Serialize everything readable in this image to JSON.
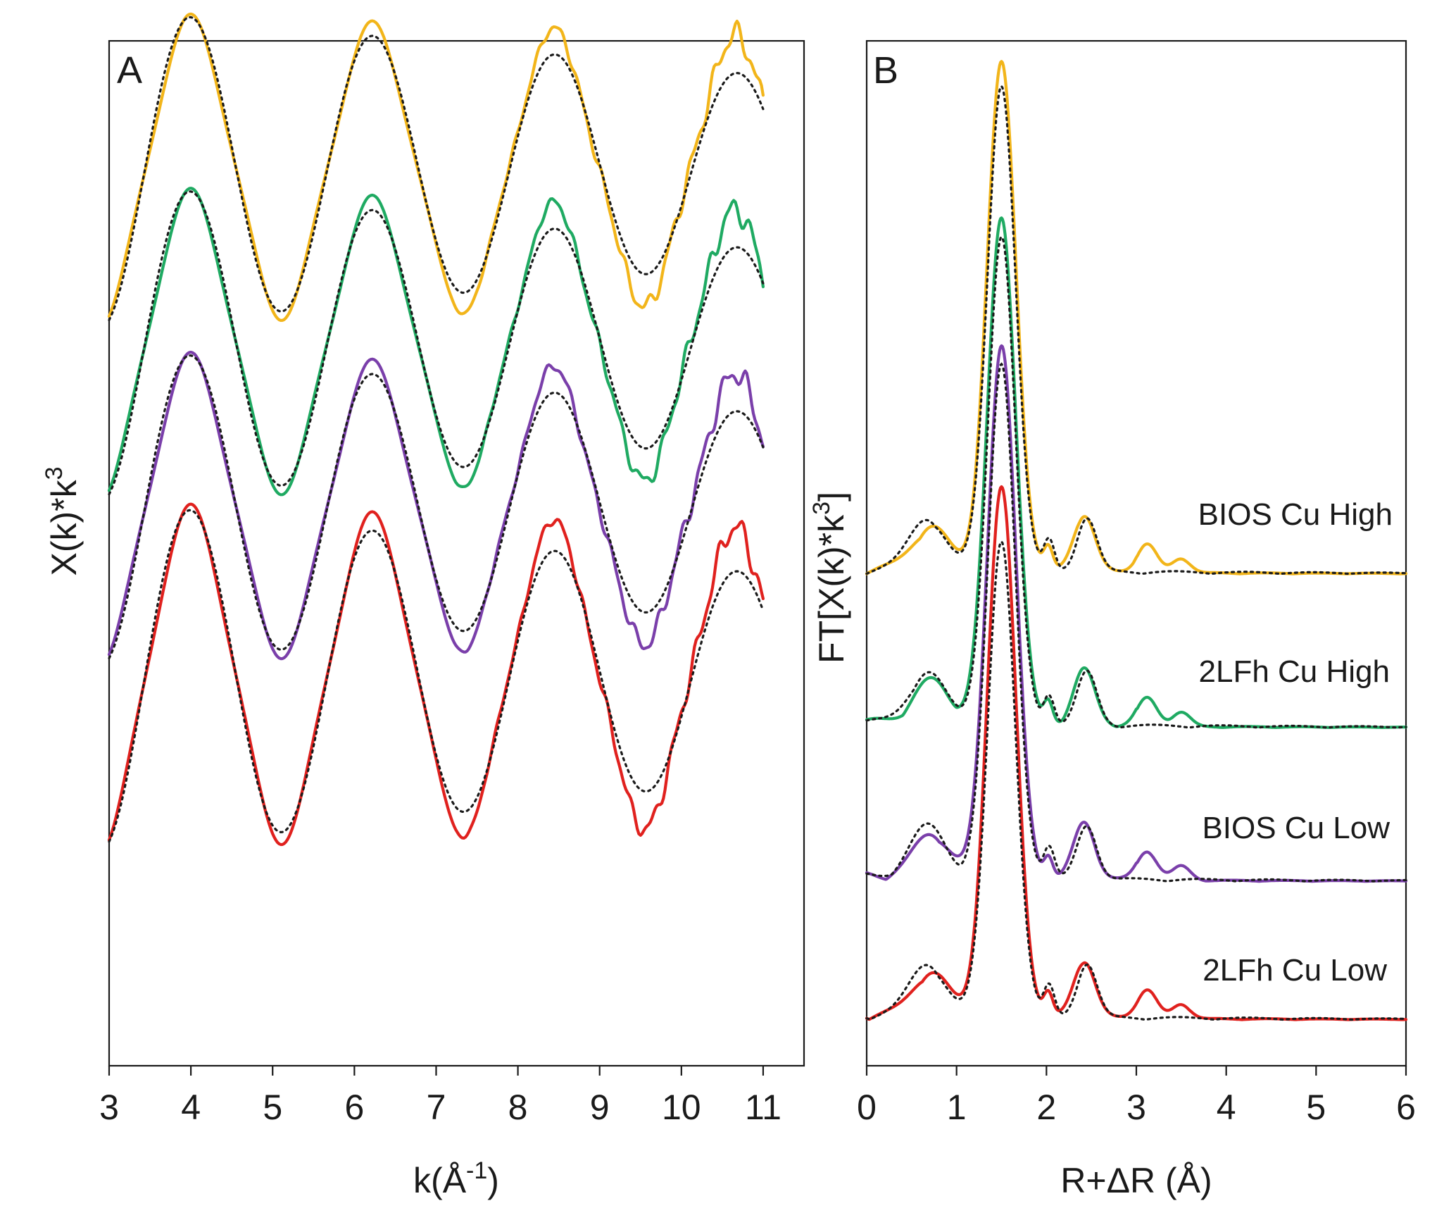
{
  "chart_data": [
    {
      "type": "line",
      "panel": "A",
      "xlabel": "k(Å-1)",
      "xlabel_parts": {
        "base": "k(Å",
        "sup": "-1",
        "close": ")"
      },
      "ylabel": "X(k)*k3",
      "ylabel_parts": {
        "base": "X(k)*k",
        "sup": "3"
      },
      "xlim": [
        3,
        11.5
      ],
      "ylim": [
        0,
        10
      ],
      "xticks": [
        "3",
        "4",
        "5",
        "6",
        "7",
        "8",
        "9",
        "10",
        "11"
      ],
      "yticks": [],
      "data_range": [
        3,
        11
      ],
      "grid": false,
      "series": [
        {
          "name": "BIOS Cu High",
          "color": "#F2B51A",
          "offset": 8.75,
          "amplitude": 1.35,
          "damping": 0.02,
          "noise": 0.1,
          "fit_amplitude": 1.48,
          "fit_damping": 0.055
        },
        {
          "name": "2LFh Cu High",
          "color": "#1FAA62",
          "offset": 7.05,
          "amplitude": 1.35,
          "damping": 0.02,
          "noise": 0.1,
          "fit_amplitude": 1.48,
          "fit_damping": 0.055
        },
        {
          "name": "BIOS Cu Low",
          "color": "#7A3FAA",
          "offset": 5.45,
          "amplitude": 1.35,
          "damping": 0.02,
          "noise": 0.1,
          "fit_amplitude": 1.48,
          "fit_damping": 0.055
        },
        {
          "name": "2LFh Cu Low",
          "color": "#E0211E",
          "offset": 3.8,
          "amplitude": 1.5,
          "damping": 0.02,
          "noise": 0.1,
          "fit_amplitude": 1.62,
          "fit_damping": 0.055
        }
      ]
    },
    {
      "type": "line",
      "panel": "B",
      "xlabel": "R+ΔR (Å)",
      "ylabel": "FT[X(k)*k3]",
      "ylabel_parts": {
        "base": "FT[X(k)*k",
        "sup": "3",
        "close": "]"
      },
      "xlim": [
        0,
        6
      ],
      "ylim": [
        0,
        10
      ],
      "xticks": [
        "0",
        "1",
        "2",
        "3",
        "4",
        "5",
        "6"
      ],
      "yticks": [],
      "grid": false,
      "series": [
        {
          "name": "BIOS Cu High",
          "label": "BIOS Cu High",
          "color": "#F2B51A",
          "baseline": 4.8,
          "peak_height": 4.95,
          "fit_peak_height": 4.75
        },
        {
          "name": "2LFh Cu High",
          "label": "2LFh Cu High",
          "color": "#1FAA62",
          "baseline": 3.3,
          "peak_height": 4.95,
          "fit_peak_height": 4.75
        },
        {
          "name": "BIOS Cu Low",
          "label": "BIOS Cu Low",
          "color": "#7A3FAA",
          "baseline": 1.8,
          "peak_height": 5.2,
          "fit_peak_height": 5.0
        },
        {
          "name": "2LFh Cu Low",
          "label": "2LFh Cu Low",
          "color": "#E0211E",
          "baseline": 0.45,
          "peak_height": 5.15,
          "fit_peak_height": 4.65
        }
      ]
    }
  ]
}
